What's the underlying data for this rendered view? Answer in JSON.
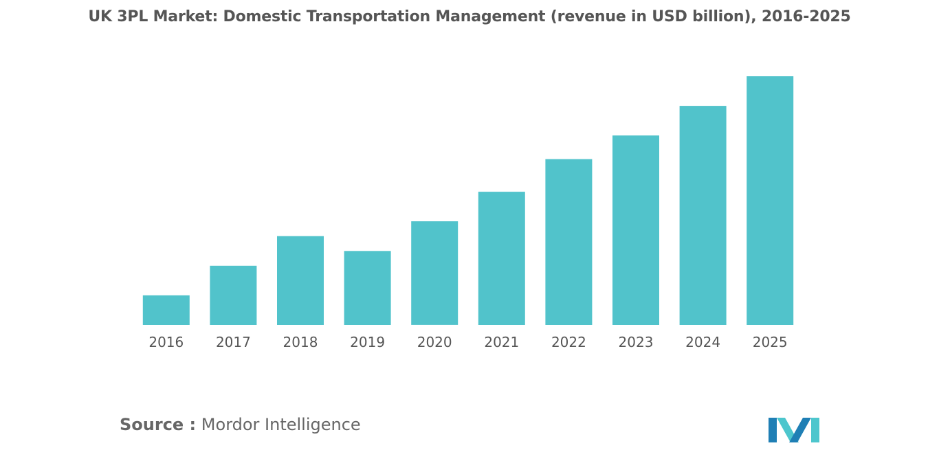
{
  "title": "UK 3PL Market: Domestic Transportation Management (revenue in USD billion), 2016-2025",
  "source": {
    "prefix": "Source :",
    "name": "Mordor Intelligence"
  },
  "logo": {
    "icon": "mordor-intelligence-logo-icon"
  },
  "colors": {
    "bar": "#51c3cb",
    "text": "#555555",
    "logo_dark": "#1f7fb5",
    "logo_light": "#4dc6cd"
  },
  "chart_data": {
    "type": "bar",
    "title": "UK 3PL Market: Domestic Transportation Management (revenue in USD billion), 2016-2025",
    "xlabel": "",
    "ylabel": "",
    "categories": [
      "2016",
      "2017",
      "2018",
      "2019",
      "2020",
      "2021",
      "2022",
      "2023",
      "2024",
      "2025"
    ],
    "values": [
      10,
      20,
      30,
      25,
      35,
      45,
      56,
      64,
      74,
      84
    ],
    "ylim": [
      0,
      100
    ],
    "grid": false,
    "legend": "none"
  }
}
